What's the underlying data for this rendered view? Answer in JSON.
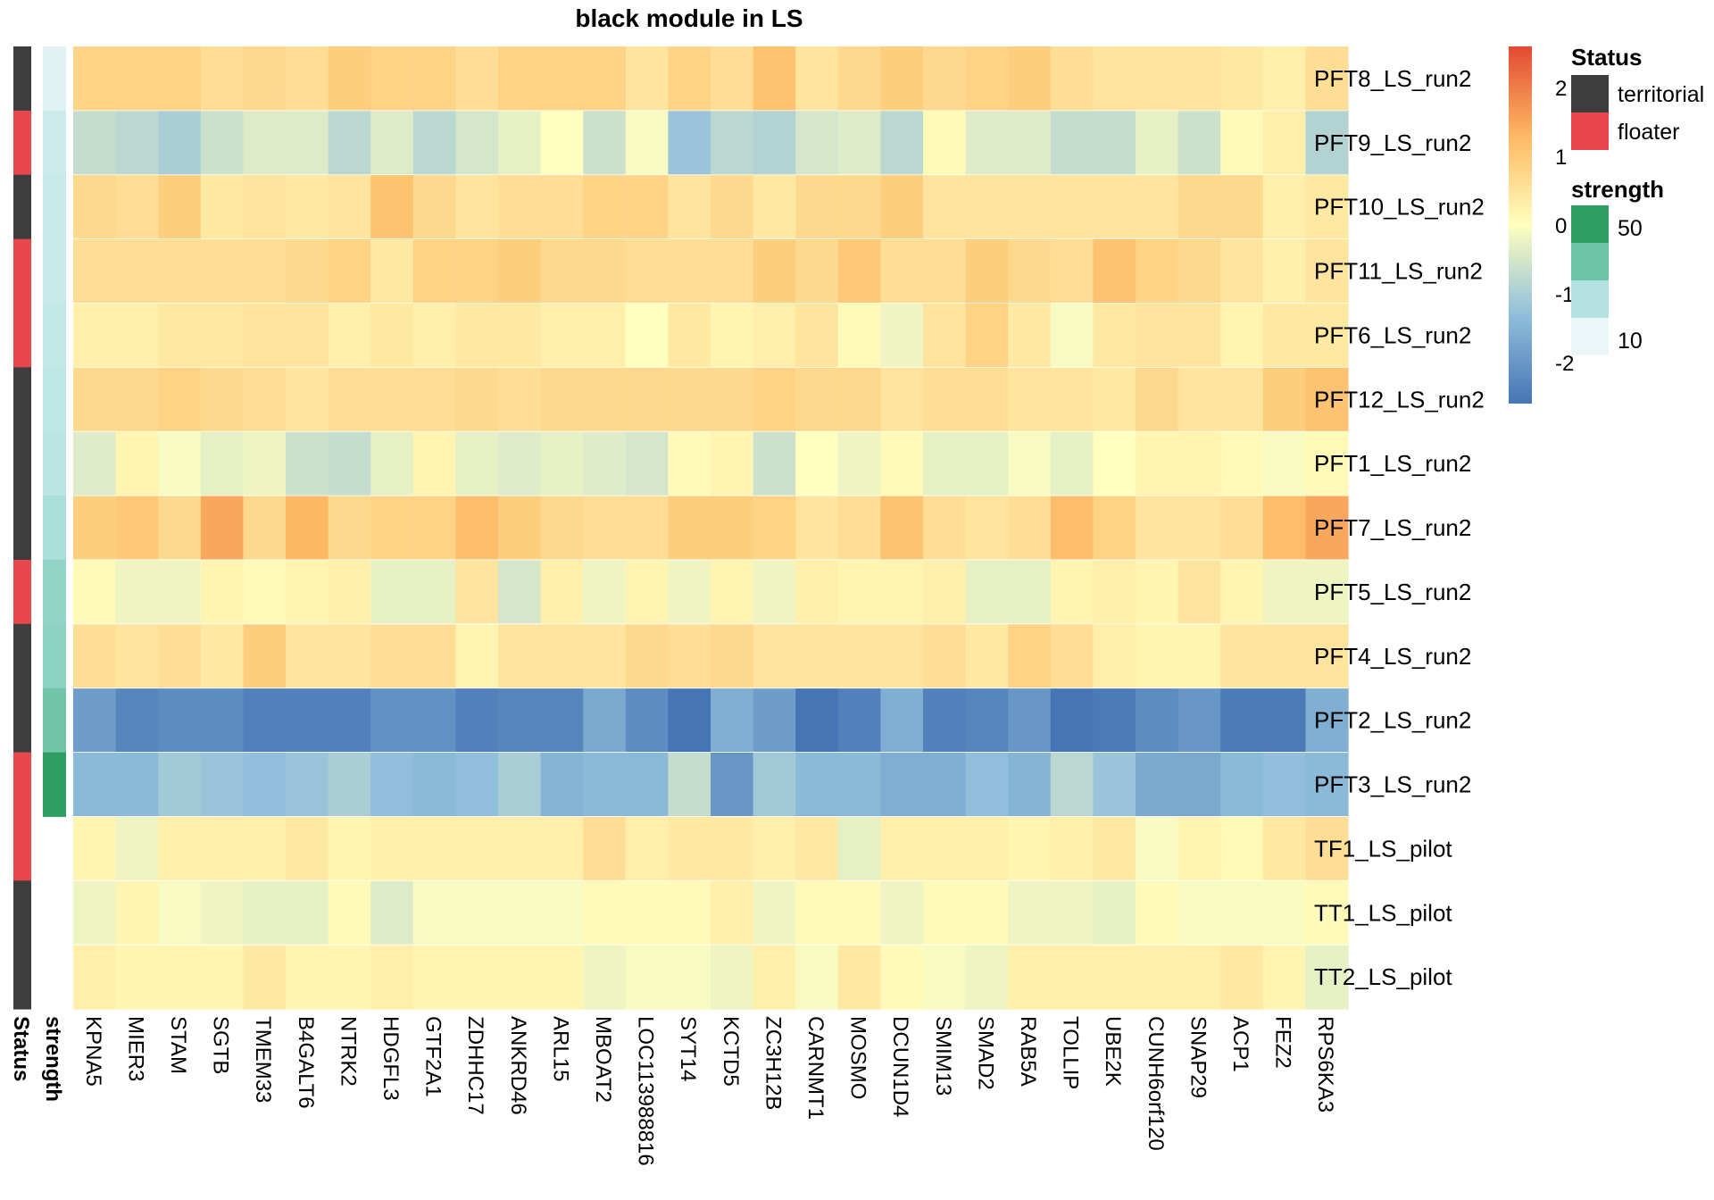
{
  "chart_data": {
    "type": "heatmap",
    "title": "black module in LS",
    "columns": [
      "KPNA5",
      "MIER3",
      "STAM",
      "SGTB",
      "TMEM33",
      "B4GALT6",
      "NTRK2",
      "HDGFL3",
      "GTF2A1",
      "ZDHHC17",
      "ANKRD46",
      "ARL15",
      "MBOAT2",
      "LOC113988816",
      "SYT14",
      "KCTD5",
      "ZC3H12B",
      "CARNMT1",
      "MOSMO",
      "DCUN1D4",
      "SMIM13",
      "SMAD2",
      "RAB5A",
      "TOLLIP",
      "UBE2K",
      "CUNH6orf120",
      "SNAP29",
      "ACP1",
      "FEZ2",
      "RPS6KA3"
    ],
    "rows": [
      "PFT8_LS_run2",
      "PFT9_LS_run2",
      "PFT10_LS_run2",
      "PFT11_LS_run2",
      "PFT6_LS_run2",
      "PFT12_LS_run2",
      "PFT1_LS_run2",
      "PFT7_LS_run2",
      "PFT5_LS_run2",
      "PFT4_LS_run2",
      "PFT2_LS_run2",
      "PFT3_LS_run2",
      "TF1_LS_pilot",
      "TT1_LS_pilot",
      "TT2_LS_pilot"
    ],
    "values": [
      [
        0.8,
        0.8,
        0.8,
        0.6,
        0.7,
        0.6,
        0.9,
        0.8,
        0.8,
        0.6,
        0.8,
        0.8,
        0.8,
        0.5,
        0.8,
        0.6,
        1.1,
        0.5,
        0.7,
        0.9,
        0.7,
        0.8,
        0.9,
        0.6,
        0.5,
        0.5,
        0.5,
        0.4,
        0.3,
        0.6
      ],
      [
        -0.7,
        -0.8,
        -1.0,
        -0.6,
        -0.4,
        -0.4,
        -0.8,
        -0.4,
        -0.8,
        -0.5,
        -0.3,
        0.0,
        -0.6,
        -0.1,
        -1.2,
        -0.8,
        -0.9,
        -0.5,
        -0.4,
        -0.8,
        0.1,
        -0.4,
        -0.4,
        -0.7,
        -0.7,
        -0.3,
        -0.6,
        0.1,
        0.3,
        -0.9
      ],
      [
        0.7,
        0.6,
        0.9,
        0.4,
        0.5,
        0.4,
        0.5,
        1.1,
        0.7,
        0.5,
        0.6,
        0.6,
        0.8,
        0.8,
        0.5,
        0.7,
        0.4,
        0.7,
        0.7,
        0.9,
        0.5,
        0.5,
        0.5,
        0.5,
        0.5,
        0.5,
        0.7,
        0.7,
        0.3,
        0.4
      ],
      [
        0.6,
        0.6,
        0.6,
        0.6,
        0.6,
        0.7,
        0.8,
        0.4,
        0.8,
        0.8,
        0.9,
        0.7,
        0.7,
        0.6,
        0.6,
        0.6,
        0.9,
        0.7,
        1.0,
        0.6,
        0.6,
        0.9,
        0.7,
        0.6,
        1.1,
        0.8,
        0.7,
        0.5,
        0.3,
        0.5
      ],
      [
        0.3,
        0.3,
        0.4,
        0.4,
        0.5,
        0.5,
        0.3,
        0.4,
        0.3,
        0.4,
        0.4,
        0.3,
        0.3,
        0.0,
        0.4,
        0.2,
        0.3,
        0.5,
        0.1,
        -0.2,
        0.5,
        0.8,
        0.4,
        -0.1,
        0.4,
        0.5,
        0.5,
        0.2,
        0.4,
        0.4
      ],
      [
        0.7,
        0.7,
        0.8,
        0.7,
        0.6,
        0.5,
        0.6,
        0.6,
        0.6,
        0.7,
        0.6,
        0.7,
        0.7,
        0.7,
        0.7,
        0.7,
        0.8,
        0.7,
        0.7,
        0.5,
        0.6,
        0.6,
        0.5,
        0.5,
        0.4,
        0.7,
        0.5,
        0.5,
        0.9,
        1.1
      ],
      [
        -0.4,
        0.2,
        -0.1,
        -0.3,
        -0.2,
        -0.6,
        -0.7,
        -0.3,
        0.2,
        -0.3,
        -0.4,
        -0.3,
        -0.4,
        -0.5,
        0.1,
        0.2,
        -0.6,
        0.0,
        -0.2,
        0.1,
        -0.3,
        -0.3,
        -0.1,
        -0.3,
        0.0,
        0.2,
        0.2,
        0.1,
        -0.1,
        0.1
      ],
      [
        0.9,
        1.0,
        0.7,
        1.5,
        0.7,
        1.3,
        0.7,
        0.8,
        0.8,
        1.2,
        0.9,
        0.7,
        0.6,
        0.6,
        0.9,
        0.9,
        0.8,
        0.5,
        0.6,
        1.1,
        0.6,
        0.5,
        0.6,
        1.2,
        0.8,
        0.5,
        0.5,
        0.6,
        1.2,
        1.5
      ],
      [
        0.1,
        -0.2,
        -0.2,
        0.2,
        0.1,
        0.2,
        0.3,
        -0.3,
        -0.3,
        0.5,
        -0.5,
        0.3,
        -0.2,
        0.2,
        -0.2,
        0.2,
        -0.2,
        0.3,
        0.2,
        0.2,
        0.3,
        -0.3,
        -0.3,
        0.2,
        0.3,
        0.2,
        0.5,
        0.2,
        -0.2,
        -0.2
      ],
      [
        0.6,
        0.5,
        0.6,
        0.4,
        0.9,
        0.5,
        0.5,
        0.6,
        0.6,
        0.2,
        0.5,
        0.5,
        0.5,
        0.7,
        0.6,
        0.7,
        0.5,
        0.5,
        0.5,
        0.5,
        0.6,
        0.4,
        0.8,
        0.6,
        0.3,
        0.2,
        0.2,
        0.5,
        0.5,
        0.5
      ],
      [
        -1.9,
        -2.3,
        -2.2,
        -2.2,
        -2.4,
        -2.4,
        -2.4,
        -2.1,
        -2.1,
        -2.4,
        -2.3,
        -2.3,
        -1.7,
        -2.2,
        -2.6,
        -1.6,
        -1.9,
        -2.6,
        -2.4,
        -1.6,
        -2.4,
        -2.3,
        -2.0,
        -2.6,
        -2.5,
        -2.2,
        -2.0,
        -2.5,
        -2.5,
        -1.6
      ],
      [
        -1.4,
        -1.4,
        -1.1,
        -1.2,
        -1.3,
        -1.2,
        -1.0,
        -1.3,
        -1.4,
        -1.3,
        -1.0,
        -1.5,
        -1.4,
        -1.4,
        -0.7,
        -2.0,
        -1.1,
        -1.4,
        -1.4,
        -1.6,
        -1.6,
        -1.3,
        -1.5,
        -0.8,
        -1.2,
        -1.7,
        -1.7,
        -1.4,
        -1.3,
        -1.4
      ],
      [
        0.2,
        -0.2,
        0.3,
        0.3,
        0.3,
        0.4,
        0.2,
        0.3,
        0.3,
        0.3,
        0.3,
        0.3,
        0.6,
        0.3,
        0.4,
        0.4,
        0.3,
        0.4,
        -0.3,
        0.3,
        0.3,
        0.3,
        0.2,
        0.3,
        0.4,
        -0.1,
        0.2,
        0.1,
        0.4,
        0.6
      ],
      [
        -0.2,
        0.2,
        -0.1,
        -0.2,
        -0.3,
        -0.3,
        0.1,
        -0.4,
        -0.1,
        -0.1,
        -0.1,
        -0.1,
        0.1,
        0.1,
        0.1,
        0.3,
        -0.2,
        0.1,
        0.1,
        -0.2,
        0.1,
        0.1,
        -0.2,
        -0.2,
        -0.3,
        0.1,
        -0.1,
        -0.1,
        -0.1,
        0.1
      ],
      [
        0.3,
        0.2,
        0.2,
        0.2,
        0.4,
        0.2,
        0.2,
        0.3,
        0.2,
        0.2,
        0.2,
        0.2,
        -0.2,
        -0.1,
        -0.1,
        -0.2,
        0.3,
        -0.1,
        0.4,
        0.1,
        -0.1,
        -0.2,
        0.3,
        0.3,
        0.3,
        0.3,
        0.3,
        0.4,
        0.2,
        -0.3
      ]
    ],
    "annotations": {
      "Status": [
        "territorial",
        "floater",
        "territorial",
        "floater",
        "floater",
        "territorial",
        "territorial",
        "territorial",
        "floater",
        "territorial",
        "territorial",
        "floater",
        "floater",
        "territorial",
        "territorial"
      ],
      "strength": [
        8,
        13,
        14,
        14,
        16,
        17,
        18,
        22,
        27,
        28,
        34,
        50,
        null,
        null,
        null
      ]
    },
    "annotation_labels": [
      "Status",
      "strength"
    ],
    "color_scale": {
      "stops": [
        {
          "value": -2.6,
          "color": "#4575b4"
        },
        {
          "value": -1.3,
          "color": "#91bfdb"
        },
        {
          "value": 0,
          "color": "#ffffbf"
        },
        {
          "value": 1.3,
          "color": "#fdb863"
        },
        {
          "value": 2.6,
          "color": "#e34a33"
        }
      ],
      "legend_ticks": [
        2,
        1,
        0,
        -1,
        -2
      ],
      "range": [
        -2.6,
        2.6
      ]
    },
    "status_legend": {
      "title": "Status",
      "items": [
        {
          "label": "territorial",
          "color": "#3d3d3d"
        },
        {
          "label": "floater",
          "color": "#e8474d"
        }
      ]
    },
    "strength_legend": {
      "title": "strength",
      "range": [
        5,
        50
      ],
      "swatches": [
        "#2e9e62",
        "#6cc4a6",
        "#b3e2e0",
        "#ebf6f8"
      ],
      "tick_labels": [
        "50",
        "10"
      ]
    }
  }
}
